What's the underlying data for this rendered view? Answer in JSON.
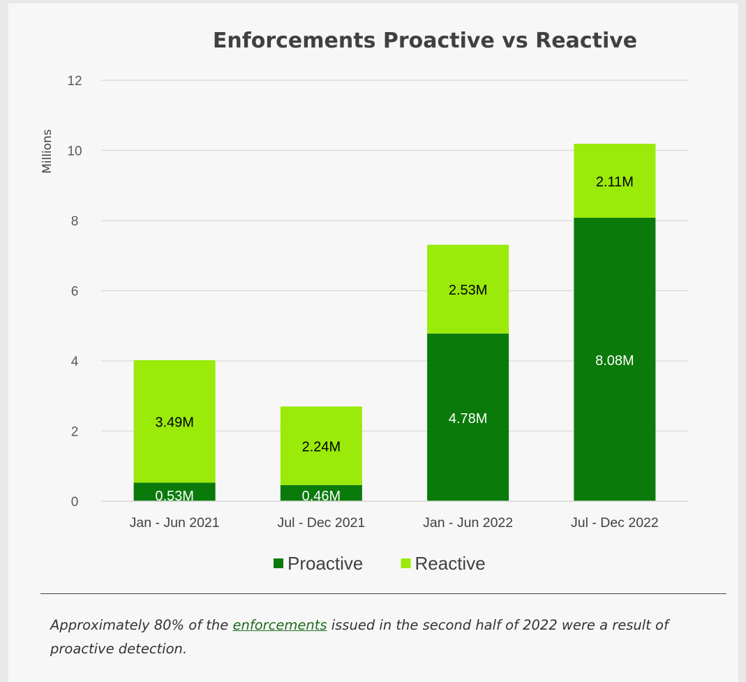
{
  "chart_data": {
    "type": "bar",
    "stacked": true,
    "title": "Enforcements Proactive vs Reactive",
    "ylabel": "Millions",
    "ylim": [
      0,
      12
    ],
    "yticks": [
      0,
      2,
      4,
      6,
      8,
      10,
      12
    ],
    "grid": true,
    "legend_position": "bottom",
    "categories": [
      "Jan - Jun 2021",
      "Jul - Dec 2021",
      "Jan - Jun 2022",
      "Jul - Dec 2022"
    ],
    "series": [
      {
        "name": "Proactive",
        "color": "#0a7a0a",
        "values": [
          0.53,
          0.46,
          4.78,
          8.08
        ],
        "labels": [
          "0.53M",
          "0.46M",
          "4.78M",
          "8.08M"
        ]
      },
      {
        "name": "Reactive",
        "color": "#9aea0a",
        "values": [
          3.49,
          2.24,
          2.53,
          2.11
        ],
        "labels": [
          "3.49M",
          "2.24M",
          "2.53M",
          "2.11M"
        ]
      }
    ]
  },
  "caption": {
    "before": "Approximately 80% of the ",
    "link": "enforcements",
    "after": " issued in the second half of 2022 were a result of proactive detection."
  }
}
